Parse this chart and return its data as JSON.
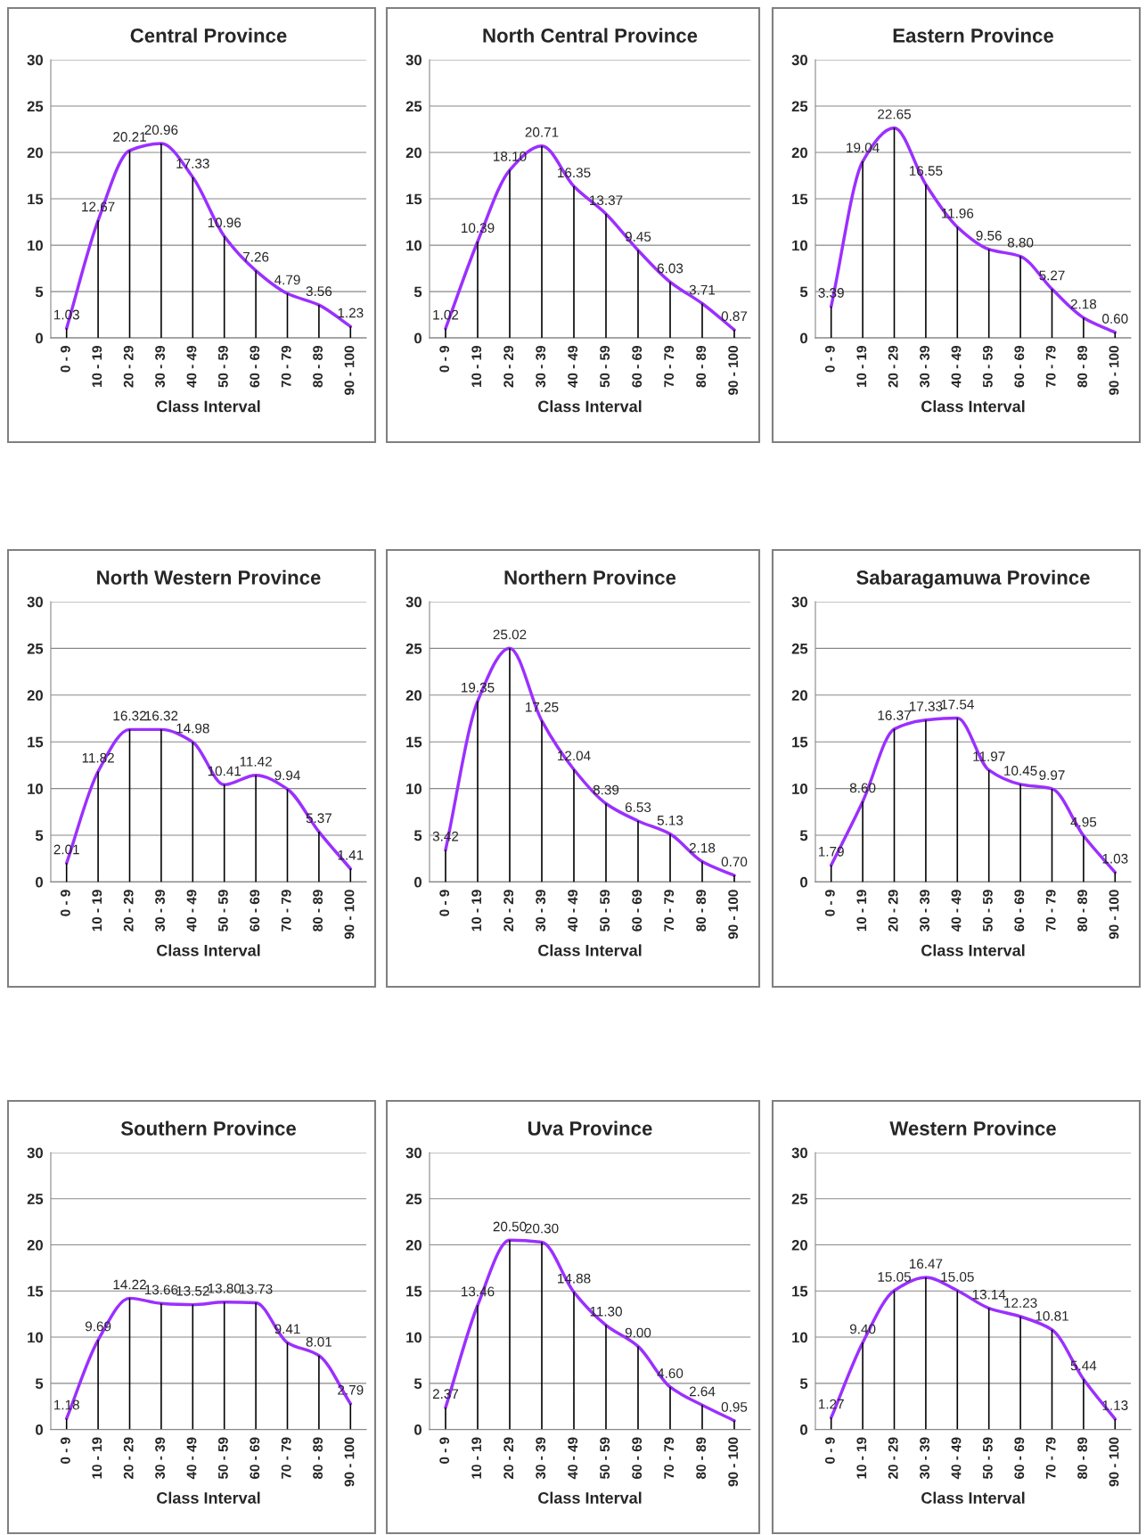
{
  "chart_data": [
    {
      "type": "line",
      "title": "Central Province",
      "xlabel": "Class Interval",
      "categories": [
        "0 - 9",
        "10 - 19",
        "20 - 29",
        "30 - 39",
        "40 - 49",
        "50 - 59",
        "60 - 69",
        "70 - 79",
        "80 - 89",
        "90 - 100"
      ],
      "ylim": [
        0,
        30
      ],
      "yticks": [
        0,
        5,
        10,
        15,
        20,
        25,
        30
      ],
      "grid": "y",
      "legend": false,
      "series": [
        {
          "type": "bar",
          "color": "#000000",
          "values": [
            1.03,
            12.67,
            20.21,
            20.96,
            17.33,
            10.96,
            7.26,
            4.79,
            3.56,
            1.23
          ]
        },
        {
          "color": "#9b30ff",
          "values": [
            1.03,
            12.67,
            20.21,
            20.96,
            17.33,
            10.96,
            7.26,
            4.79,
            3.56,
            1.23
          ],
          "value_labels": [
            "1.03",
            "12.67",
            "20.21",
            "20.96",
            "17.33",
            "10.96",
            "7.26",
            "4.79",
            "3.56",
            "1.23"
          ]
        }
      ]
    },
    {
      "type": "line",
      "title": "North Central Province",
      "xlabel": "Class Interval",
      "categories": [
        "0 - 9",
        "10 - 19",
        "20 - 29",
        "30 - 39",
        "40 - 49",
        "50 - 59",
        "60 - 69",
        "70 - 79",
        "80 - 89",
        "90 - 100"
      ],
      "ylim": [
        0,
        30
      ],
      "yticks": [
        0,
        5,
        10,
        15,
        20,
        25,
        30
      ],
      "grid": "y",
      "legend": false,
      "series": [
        {
          "type": "bar",
          "color": "#000000",
          "values": [
            1.02,
            10.39,
            18.1,
            20.71,
            16.35,
            13.37,
            9.45,
            6.03,
            3.71,
            0.87
          ]
        },
        {
          "color": "#9b30ff",
          "values": [
            1.02,
            10.39,
            18.1,
            20.71,
            16.35,
            13.37,
            9.45,
            6.03,
            3.71,
            0.87
          ],
          "value_labels": [
            "1.02",
            "10.39",
            "18.10",
            "20.71",
            "16.35",
            "13.37",
            "9.45",
            "6.03",
            "3.71",
            "0.87"
          ]
        }
      ]
    },
    {
      "type": "line",
      "title": "Eastern Province",
      "xlabel": "Class Interval",
      "categories": [
        "0 - 9",
        "10 - 19",
        "20 - 29",
        "30 - 39",
        "40 - 49",
        "50 - 59",
        "60 - 69",
        "70 - 79",
        "80 - 89",
        "90 - 100"
      ],
      "ylim": [
        0,
        30
      ],
      "yticks": [
        0,
        5,
        10,
        15,
        20,
        25,
        30
      ],
      "grid": "y",
      "legend": false,
      "series": [
        {
          "type": "bar",
          "color": "#000000",
          "values": [
            3.39,
            19.04,
            22.65,
            16.55,
            11.96,
            9.56,
            8.8,
            5.27,
            2.18,
            0.6
          ]
        },
        {
          "color": "#9b30ff",
          "values": [
            3.39,
            19.04,
            22.65,
            16.55,
            11.96,
            9.56,
            8.8,
            5.27,
            2.18,
            0.6
          ],
          "value_labels": [
            "3.39",
            "19.04",
            "22.65",
            "16.55",
            "11.96",
            "9.56",
            "8.80",
            "5.27",
            "2.18",
            "0.60"
          ]
        }
      ]
    },
    {
      "type": "line",
      "title": "North Western Province",
      "xlabel": "Class Interval",
      "categories": [
        "0 - 9",
        "10 - 19",
        "20 - 29",
        "30 - 39",
        "40 - 49",
        "50 - 59",
        "60 - 69",
        "70 - 79",
        "80 - 89",
        "90 - 100"
      ],
      "ylim": [
        0,
        30
      ],
      "yticks": [
        0,
        5,
        10,
        15,
        20,
        25,
        30
      ],
      "grid": "y",
      "legend": false,
      "series": [
        {
          "type": "bar",
          "color": "#000000",
          "values": [
            2.01,
            11.82,
            16.32,
            16.32,
            14.98,
            10.41,
            11.42,
            9.94,
            5.37,
            1.41
          ]
        },
        {
          "color": "#9b30ff",
          "values": [
            2.01,
            11.82,
            16.32,
            16.32,
            14.98,
            10.41,
            11.42,
            9.94,
            5.37,
            1.41
          ],
          "value_labels": [
            "2.01",
            "11.82",
            "16.32",
            "16.32",
            "14.98",
            "10.41",
            "11.42",
            "9.94",
            "5.37",
            "1.41"
          ]
        }
      ]
    },
    {
      "type": "line",
      "title": "Northern Province",
      "xlabel": "Class Interval",
      "categories": [
        "0 - 9",
        "10 - 19",
        "20 - 29",
        "30 - 39",
        "40 - 49",
        "50 - 59",
        "60 - 69",
        "70 - 79",
        "80 - 89",
        "90 - 100"
      ],
      "ylim": [
        0,
        30
      ],
      "yticks": [
        0,
        5,
        10,
        15,
        20,
        25,
        30
      ],
      "grid": "y",
      "legend": false,
      "series": [
        {
          "type": "bar",
          "color": "#000000",
          "values": [
            3.42,
            19.35,
            25.02,
            17.25,
            12.04,
            8.39,
            6.53,
            5.13,
            2.18,
            0.7
          ]
        },
        {
          "color": "#9b30ff",
          "values": [
            3.42,
            19.35,
            25.02,
            17.25,
            12.04,
            8.39,
            6.53,
            5.13,
            2.18,
            0.7
          ],
          "value_labels": [
            "3.42",
            "19.35",
            "25.02",
            "17.25",
            "12.04",
            "8.39",
            "6.53",
            "5.13",
            "2.18",
            "0.70"
          ]
        }
      ]
    },
    {
      "type": "line",
      "title": "Sabaragamuwa Province",
      "xlabel": "Class Interval",
      "categories": [
        "0 - 9",
        "10 - 19",
        "20 - 29",
        "30 - 39",
        "40 - 49",
        "50 - 59",
        "60 - 69",
        "70 - 79",
        "80 - 89",
        "90 - 100"
      ],
      "ylim": [
        0,
        30
      ],
      "yticks": [
        0,
        5,
        10,
        15,
        20,
        25,
        30
      ],
      "grid": "y",
      "legend": false,
      "series": [
        {
          "type": "bar",
          "color": "#000000",
          "values": [
            1.79,
            8.6,
            16.37,
            17.33,
            17.54,
            11.97,
            10.45,
            9.97,
            4.95,
            1.03
          ]
        },
        {
          "color": "#9b30ff",
          "values": [
            1.79,
            8.6,
            16.37,
            17.33,
            17.54,
            11.97,
            10.45,
            9.97,
            4.95,
            1.03
          ],
          "value_labels": [
            "1.79",
            "8.60",
            "16.37",
            "17.33",
            "17.54",
            "11.97",
            "10.45",
            "9.97",
            "4.95",
            "1.03"
          ]
        }
      ]
    },
    {
      "type": "line",
      "title": "Southern Province",
      "xlabel": "Class Interval",
      "categories": [
        "0 - 9",
        "10 - 19",
        "20 - 29",
        "30 - 39",
        "40 - 49",
        "50 - 59",
        "60 - 69",
        "70 - 79",
        "80 - 89",
        "90 - 100"
      ],
      "ylim": [
        0,
        30
      ],
      "yticks": [
        0,
        5,
        10,
        15,
        20,
        25,
        30
      ],
      "grid": "y",
      "legend": false,
      "series": [
        {
          "type": "bar",
          "color": "#000000",
          "values": [
            1.18,
            9.69,
            14.22,
            13.66,
            13.52,
            13.8,
            13.73,
            9.41,
            8.01,
            2.79
          ]
        },
        {
          "color": "#9b30ff",
          "values": [
            1.18,
            9.69,
            14.22,
            13.66,
            13.52,
            13.8,
            13.73,
            9.41,
            8.01,
            2.79
          ],
          "value_labels": [
            "1.18",
            "9.69",
            "14.22",
            "13.66",
            "13.52",
            "13.80",
            "13.73",
            "9.41",
            "8.01",
            "2.79"
          ]
        }
      ]
    },
    {
      "type": "line",
      "title": "Uva Province",
      "xlabel": "Class Interval",
      "categories": [
        "0 - 9",
        "10 - 19",
        "20 - 29",
        "30 - 39",
        "40 - 49",
        "50 - 59",
        "60 - 69",
        "70 - 79",
        "80 - 89",
        "90 - 100"
      ],
      "ylim": [
        0,
        30
      ],
      "yticks": [
        0,
        5,
        10,
        15,
        20,
        25,
        30
      ],
      "grid": "y",
      "legend": false,
      "series": [
        {
          "type": "bar",
          "color": "#000000",
          "values": [
            2.37,
            13.46,
            20.5,
            20.3,
            14.88,
            11.3,
            9.0,
            4.6,
            2.64,
            0.95
          ]
        },
        {
          "color": "#9b30ff",
          "values": [
            2.37,
            13.46,
            20.5,
            20.3,
            14.88,
            11.3,
            9.0,
            4.6,
            2.64,
            0.95
          ],
          "value_labels": [
            "2.37",
            "13.46",
            "20.50",
            "20.30",
            "14.88",
            "11.30",
            "9.00",
            "4.60",
            "2.64",
            "0.95"
          ]
        }
      ]
    },
    {
      "type": "line",
      "title": "Western Province",
      "xlabel": "Class Interval",
      "categories": [
        "0 - 9",
        "10 - 19",
        "20 - 29",
        "30 - 39",
        "40 - 49",
        "50 - 59",
        "60 - 69",
        "70 - 79",
        "80 - 89",
        "90 - 100"
      ],
      "ylim": [
        0,
        30
      ],
      "yticks": [
        0,
        5,
        10,
        15,
        20,
        25,
        30
      ],
      "grid": "y",
      "legend": false,
      "series": [
        {
          "type": "bar",
          "color": "#000000",
          "values": [
            1.27,
            9.4,
            15.05,
            16.47,
            15.05,
            13.14,
            12.23,
            10.81,
            5.44,
            1.13
          ]
        },
        {
          "color": "#9b30ff",
          "values": [
            1.27,
            9.4,
            15.05,
            16.47,
            15.05,
            13.14,
            12.23,
            10.81,
            5.44,
            1.13
          ],
          "value_labels": [
            "1.27",
            "9.40",
            "15.05",
            "16.47",
            "15.05",
            "13.14",
            "12.23",
            "10.81",
            "5.44",
            "1.13"
          ]
        }
      ]
    }
  ]
}
